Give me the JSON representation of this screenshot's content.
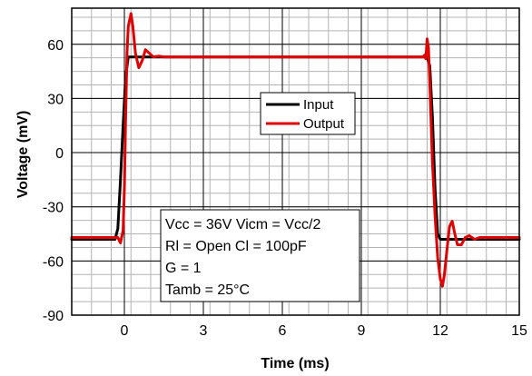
{
  "chart_data": {
    "type": "line",
    "xlabel": "Time (ms)",
    "ylabel": "Voltage (mV)",
    "xlim": [
      -2,
      15
    ],
    "ylim": [
      -90,
      80
    ],
    "xticks": [
      0,
      3,
      6,
      9,
      12,
      15
    ],
    "yticks": [
      -90,
      -60,
      -30,
      0,
      30,
      60
    ],
    "x_minor_step": 0.75,
    "y_minor_step": 7.5,
    "grid": true,
    "legend_position": "center",
    "series": [
      {
        "name": "Input",
        "color": "#000000",
        "x": [
          -2,
          -0.35,
          -0.25,
          -0.15,
          -0.05,
          0.05,
          0.15,
          11.5,
          11.6,
          11.7,
          11.8,
          11.9,
          12.0,
          15
        ],
        "y": [
          -48,
          -48,
          -42,
          -15,
          15,
          42,
          53,
          53,
          48,
          20,
          -20,
          -45,
          -48,
          -48
        ]
      },
      {
        "name": "Output",
        "color": "#e00000",
        "x": [
          -2,
          -0.25,
          -0.15,
          -0.05,
          0.0,
          0.05,
          0.1,
          0.15,
          0.25,
          0.32,
          0.42,
          0.55,
          0.68,
          0.8,
          0.95,
          1.1,
          1.3,
          1.5,
          2.0,
          11.35,
          11.4,
          11.45,
          11.5,
          11.55,
          11.62,
          11.7,
          11.8,
          11.9,
          12.0,
          12.08,
          12.15,
          12.25,
          12.35,
          12.45,
          12.55,
          12.65,
          12.8,
          12.95,
          13.1,
          13.3,
          13.5,
          15
        ],
        "y": [
          -47,
          -47,
          -50,
          -43,
          -20,
          20,
          55,
          70,
          77,
          70,
          55,
          47,
          51,
          57,
          55,
          53,
          53.5,
          53,
          53,
          53,
          54,
          52,
          63,
          58,
          30,
          -5,
          -35,
          -58,
          -70,
          -74,
          -68,
          -54,
          -41,
          -38,
          -45,
          -51,
          -51,
          -47,
          -46,
          -48,
          -47,
          -47
        ]
      }
    ],
    "annotation": [
      "Vcc = 36V Vicm = Vcc/2",
      "Rl = Open  Cl = 100pF",
      "G = 1",
      "Tamb = 25°C"
    ]
  }
}
